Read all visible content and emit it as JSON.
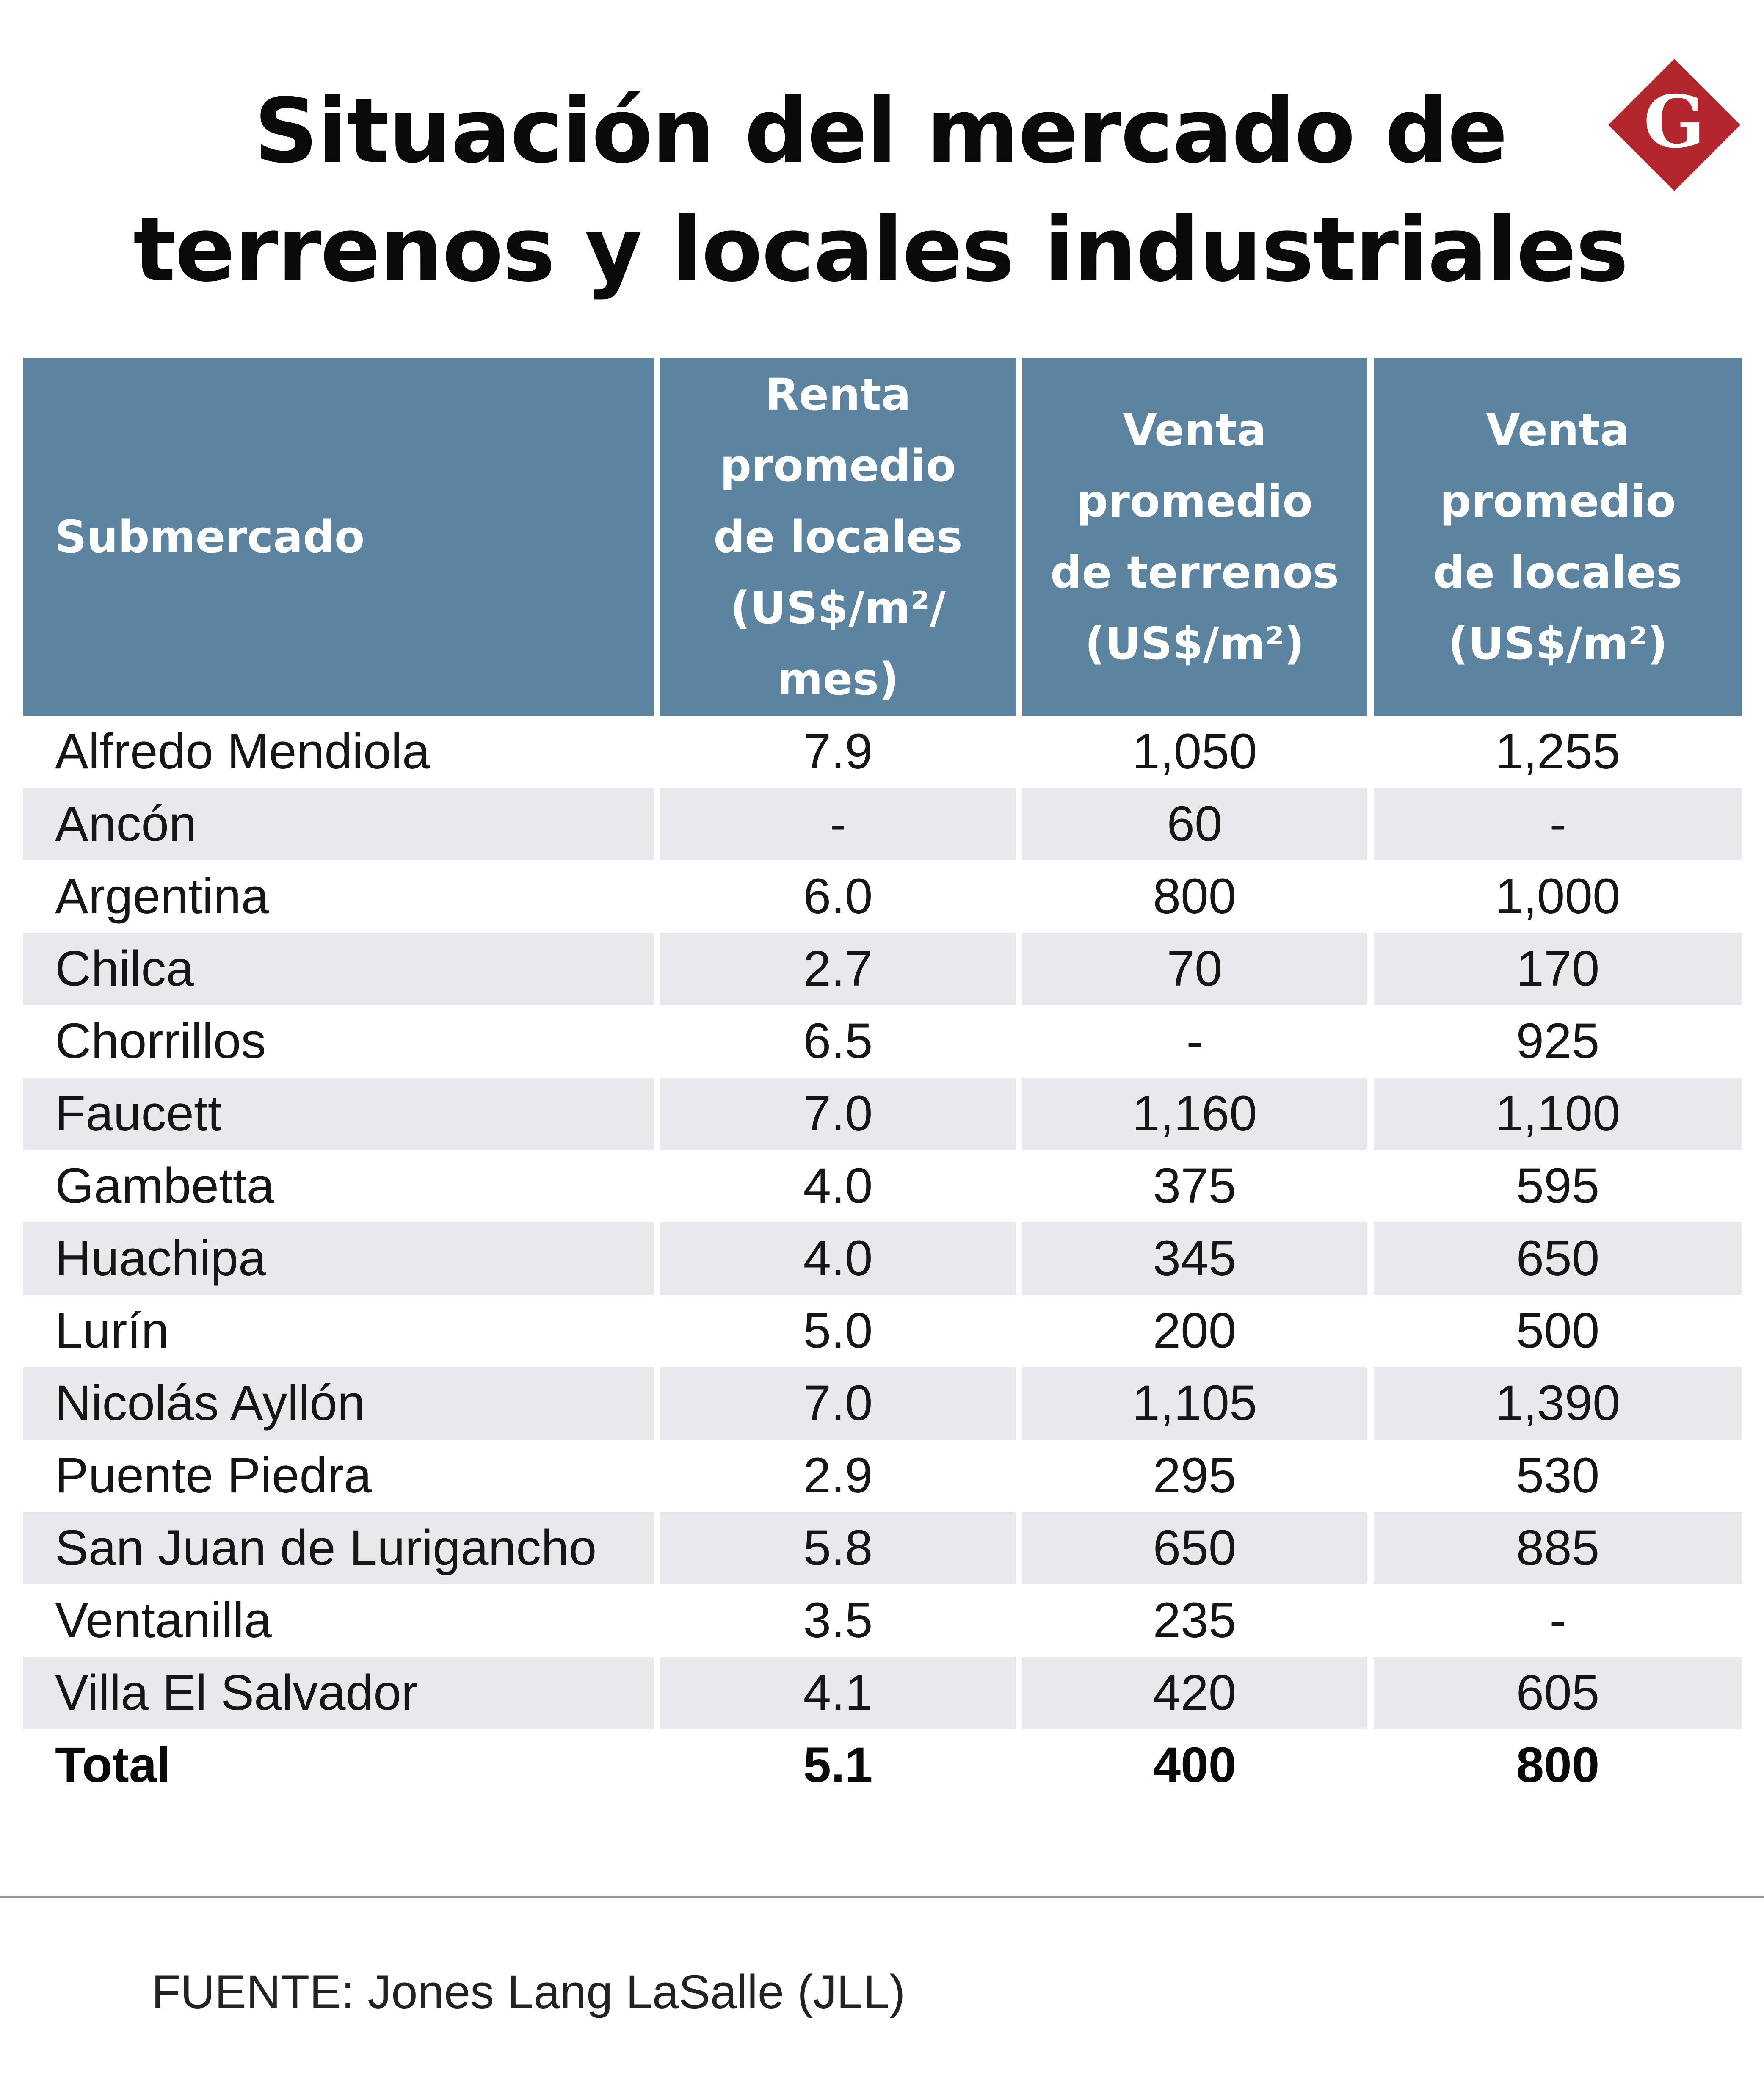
{
  "title": {
    "line1": "Situación del mercado de",
    "line2": "terrenos y locales industriales"
  },
  "logo": {
    "letter": "G",
    "shape_color": "#b3262d",
    "icon": "diamond-g-logo"
  },
  "colors": {
    "header_bg": "#5c84a0",
    "stripe_bg": "#e7e9ec"
  },
  "chart_data": {
    "type": "table",
    "columns": [
      "Submercado",
      "Renta promedio de locales (US$/m²/ mes)",
      "Venta promedio de terrenos (US$/m²)",
      "Venta promedio de locales (US$/m²)"
    ],
    "header_lines": [
      [
        "Submercado"
      ],
      [
        "Renta",
        "promedio",
        "de locales",
        "(US$/m²/",
        "mes)"
      ],
      [
        "Venta",
        "promedio",
        "de terrenos",
        "(US$/m²)"
      ],
      [
        "Venta",
        "promedio",
        "de locales",
        "(US$/m²)"
      ]
    ],
    "rows": [
      [
        "Alfredo Mendiola",
        "7.9",
        "1,050",
        "1,255"
      ],
      [
        "Ancón",
        "-",
        "60",
        "-"
      ],
      [
        "Argentina",
        "6.0",
        "800",
        "1,000"
      ],
      [
        "Chilca",
        "2.7",
        "70",
        "170"
      ],
      [
        "Chorrillos",
        "6.5",
        "-",
        "925"
      ],
      [
        "Faucett",
        "7.0",
        "1,160",
        "1,100"
      ],
      [
        "Gambetta",
        "4.0",
        "375",
        "595"
      ],
      [
        "Huachipa",
        "4.0",
        "345",
        "650"
      ],
      [
        "Lurín",
        "5.0",
        "200",
        "500"
      ],
      [
        "Nicolás Ayllón",
        "7.0",
        "1,105",
        "1,390"
      ],
      [
        "Puente Piedra",
        "2.9",
        "295",
        "530"
      ],
      [
        "San Juan de Lurigancho",
        "5.8",
        "650",
        "885"
      ],
      [
        "Ventanilla",
        "3.5",
        "235",
        "-"
      ],
      [
        "Villa El Salvador",
        "4.1",
        "420",
        "605"
      ]
    ],
    "total": [
      "Total",
      "5.1",
      "400",
      "800"
    ]
  },
  "source": "FUENTE: Jones Lang LaSalle (JLL)"
}
